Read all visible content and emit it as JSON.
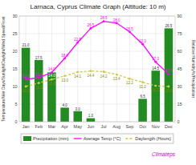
{
  "chart_data": {
    "type": "bar",
    "title": "Larnaca, Cyprus Climate Graph (Altitude: 10 m)",
    "categories": [
      "Jan",
      "Feb",
      "Mar",
      "Apr",
      "May",
      "Jun",
      "Jul",
      "Aug",
      "Sep",
      "Oct",
      "Nov",
      "Dec"
    ],
    "series": [
      {
        "name": "Precipitation (mm)",
        "type": "bar",
        "color": "#228B22",
        "values": [
          21.0,
          17.5,
          14.0,
          4.0,
          3.0,
          1.0,
          0.0,
          0.0,
          0.0,
          6.5,
          14.5,
          26.5
        ],
        "value_labels": [
          "21.0",
          "17.5",
          "14.0",
          "4.0",
          "3.0",
          "1.0",
          null,
          null,
          null,
          "6.5",
          "14.5",
          "26.5"
        ]
      },
      {
        "name": "Average Temp (°C)",
        "type": "line",
        "color": "#FF00FF",
        "marker": "circle",
        "line_style": "solid",
        "values": [
          12.0,
          12.5,
          14.0,
          18.0,
          22.5,
          26.5,
          28.5,
          28.0,
          25.5,
          22.0,
          17.0,
          13.5
        ],
        "value_labels": [
          "12.0",
          "12.5",
          "14.0",
          "18.0",
          "22.5",
          "26.5",
          "28.5",
          "28.0",
          "25.5",
          "22.0",
          "17.0",
          "13.5"
        ]
      },
      {
        "name": "Daylength (Hours)",
        "type": "line",
        "color": "#CCCC44",
        "marker": "circle",
        "line_style": "dashed",
        "values": [
          10.0,
          11.0,
          12.0,
          13.0,
          14.1,
          14.4,
          14.2,
          13.4,
          12.2,
          11.2,
          10.2,
          10.0
        ],
        "value_labels": [
          "10.0",
          "11.0",
          "12.0",
          "13.0",
          "14.1",
          "14.4",
          "14.2",
          "13.4",
          "12.2",
          "11.2",
          "10.2",
          "10.0"
        ]
      }
    ],
    "y_label": "Temperature/Wet Days/Sunlight/Daylight/Wind Speed/Frost",
    "y2_label": "Relative Humidity%/Precipitation",
    "ylim": [
      0,
      30
    ],
    "yticks": [
      0,
      5,
      10,
      15,
      20,
      25,
      30
    ],
    "y2lim": [
      0,
      90
    ],
    "y2ticks": [
      0,
      15,
      30,
      45,
      60,
      75,
      90
    ],
    "grid": true,
    "legend": "bottom",
    "data_labels": true,
    "annotations": [
      {
        "text": "Climateps",
        "color": "#CC00CC"
      }
    ]
  }
}
